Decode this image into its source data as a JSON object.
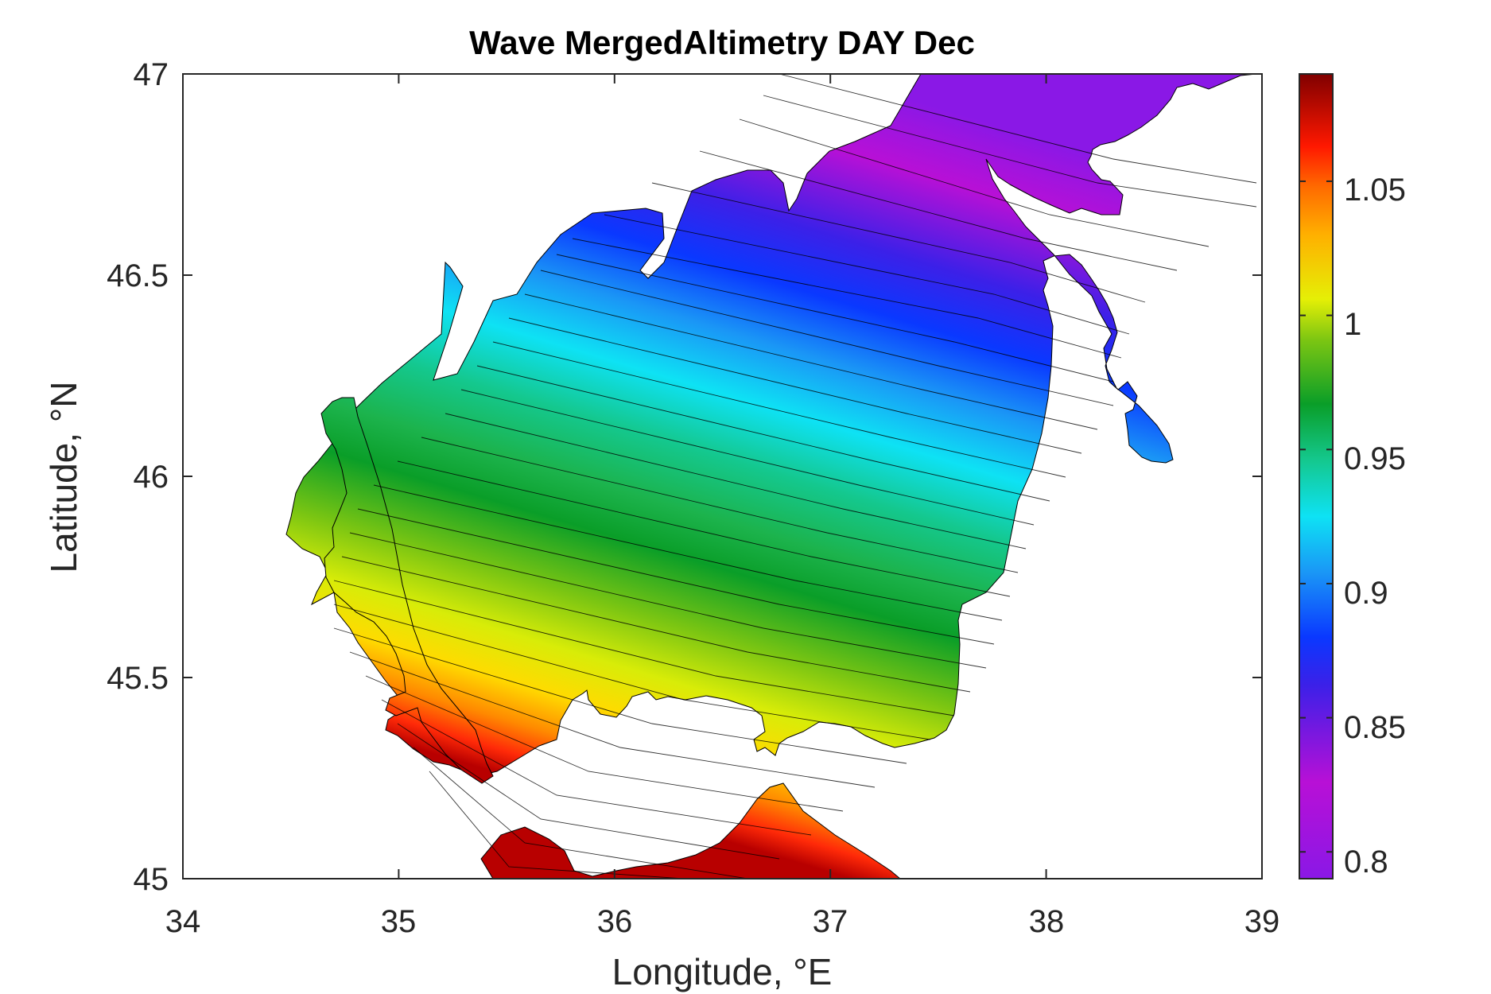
{
  "chart_data": {
    "type": "heatmap",
    "title": "Wave MergedAltimetry DAY Dec",
    "xlabel": "Longitude, °E",
    "ylabel": "Latitude, °N",
    "xlim": [
      34,
      39
    ],
    "ylim": [
      45,
      47
    ],
    "x_ticks": [
      "34",
      "35",
      "36",
      "37",
      "38",
      "39"
    ],
    "y_ticks": [
      "45",
      "45.5",
      "46",
      "46.5",
      "47"
    ],
    "colorbar": {
      "range": [
        0.79,
        1.09
      ],
      "ticks": [
        "0.8",
        "0.85",
        "0.9",
        "0.95",
        "1",
        "1.05"
      ],
      "colormap": "rainbow (violet → blue → cyan → green → yellow → orange → red → dark red)"
    },
    "field_description": "Filled contours of wave value over the Sea of Azov; isolines run WNW–ESE. Lowest values (~0.80) in the north-east (Taganrog Bay), highest (~1.06–1.08) along the south coast near 35.5°E.",
    "sample_values": [
      {
        "lon": 38.3,
        "lat": 46.95,
        "value": 0.8
      },
      {
        "lon": 37.2,
        "lat": 46.85,
        "value": 0.82
      },
      {
        "lon": 36.8,
        "lat": 46.55,
        "value": 0.87
      },
      {
        "lon": 36.0,
        "lat": 46.4,
        "value": 0.91
      },
      {
        "lon": 36.5,
        "lat": 46.1,
        "value": 0.94
      },
      {
        "lon": 36.8,
        "lat": 45.85,
        "value": 0.96
      },
      {
        "lon": 35.8,
        "lat": 45.65,
        "value": 1.0
      },
      {
        "lon": 35.5,
        "lat": 45.45,
        "value": 1.03
      },
      {
        "lon": 35.5,
        "lat": 45.05,
        "value": 1.08
      }
    ]
  }
}
